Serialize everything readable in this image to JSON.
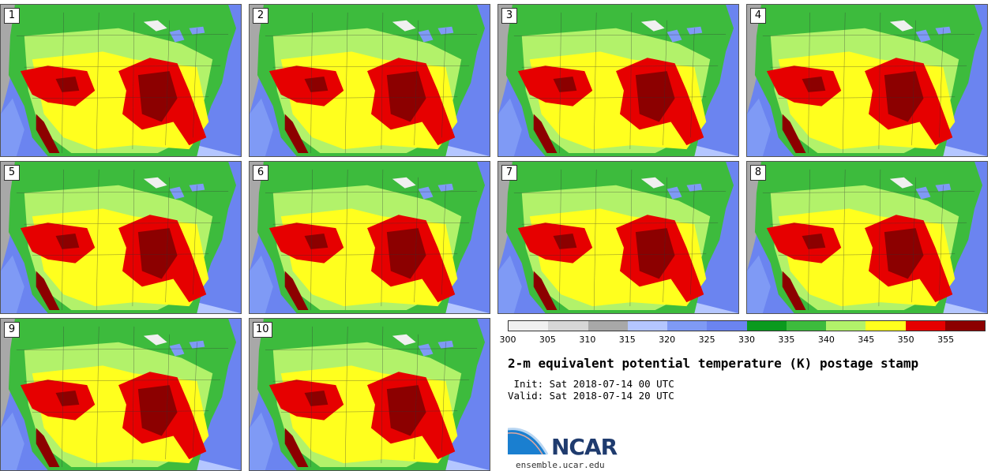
{
  "stamps": [
    {
      "label": "1"
    },
    {
      "label": "2"
    },
    {
      "label": "3"
    },
    {
      "label": "4"
    },
    {
      "label": "5"
    },
    {
      "label": "6"
    },
    {
      "label": "7"
    },
    {
      "label": "8"
    },
    {
      "label": "9"
    },
    {
      "label": "10"
    }
  ],
  "colorbar": {
    "colors": [
      "#f0f0f0",
      "#d6d6d6",
      "#a8a8a8",
      "#b4c6ff",
      "#7f9af5",
      "#6b84f0",
      "#0a9a1e",
      "#3dbb3d",
      "#b2f26a",
      "#ffff1e",
      "#e60000",
      "#8c0000"
    ],
    "ticks": [
      "300",
      "305",
      "310",
      "315",
      "320",
      "325",
      "330",
      "335",
      "340",
      "345",
      "350",
      "355"
    ]
  },
  "title": "2-m equivalent potential temperature (K) postage stamp",
  "init_line": " Init: Sat 2018-07-14 00 UTC",
  "valid_line": "Valid: Sat 2018-07-14 20 UTC",
  "logo": {
    "text": "NCAR",
    "url": "ensemble.ucar.edu"
  }
}
